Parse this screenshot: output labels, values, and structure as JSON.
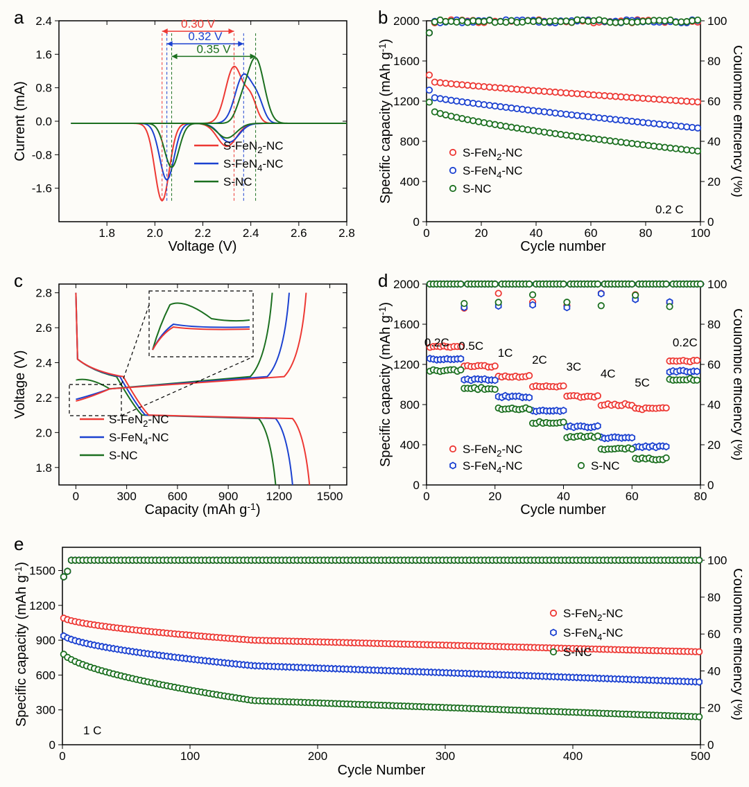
{
  "colors": {
    "red": "#ed3833",
    "blue": "#1b41d0",
    "green": "#1b6f1f",
    "black": "#000000",
    "bg": "#fdfcf8",
    "box": "#000000"
  },
  "panels": {
    "a": {
      "label": "a",
      "xlabel": "Voltage (V)",
      "ylabel": "Current (mA)",
      "xlim": [
        1.6,
        2.8
      ],
      "ylim": [
        -2.4,
        2.4
      ],
      "xticks": [
        "1.8",
        "2.0",
        "2.2",
        "2.4",
        "2.6",
        "2.8"
      ],
      "yticks": [
        "-1.6",
        "-0.8",
        "0.0",
        "0.8",
        "1.6",
        "2.4"
      ],
      "peak_labels": [
        {
          "text": "0.30 V",
          "color": "red"
        },
        {
          "text": "0.32 V",
          "color": "blue"
        },
        {
          "text": "0.35 V",
          "color": "green"
        }
      ],
      "legend": [
        {
          "label": "S-FeN",
          "sub": "2",
          "suffix": "-NC",
          "color": "red"
        },
        {
          "label": "S-FeN",
          "sub": "4",
          "suffix": "-NC",
          "color": "blue"
        },
        {
          "label": "S-NC",
          "sub": "",
          "suffix": "",
          "color": "green"
        }
      ]
    },
    "b": {
      "label": "b",
      "xlabel": "Cycle number",
      "ylabel": "Specific capacity (mAh g",
      "ylabel2": "Coulombic efficiency (%)",
      "xlim": [
        0,
        100
      ],
      "ylim1": [
        0,
        2000
      ],
      "ylim2": [
        0,
        100
      ],
      "xticks": [
        "0",
        "20",
        "40",
        "60",
        "80",
        "100"
      ],
      "yticks1": [
        "0",
        "400",
        "800",
        "1200",
        "1600",
        "2000"
      ],
      "yticks2": [
        "0",
        "20",
        "40",
        "60",
        "80",
        "100"
      ],
      "rate_label": "0.2 C",
      "legend": [
        {
          "label": "S-FeN",
          "sub": "2",
          "suffix": "-NC",
          "color": "red"
        },
        {
          "label": "S-FeN",
          "sub": "4",
          "suffix": "-NC",
          "color": "blue"
        },
        {
          "label": "S-NC",
          "sub": "",
          "suffix": "",
          "color": "green"
        }
      ],
      "series_capacity": {
        "red": {
          "start": 1400,
          "end": 1190
        },
        "blue": {
          "start": 1250,
          "end": 930
        },
        "green": {
          "start": 1130,
          "end": 700
        }
      },
      "series_eff": {
        "level": 100
      }
    },
    "c": {
      "label": "c",
      "xlabel": "Capacity (mAh g",
      "ylabel": "Voltage (V)",
      "xlim": [
        -100,
        1600
      ],
      "ylim": [
        1.7,
        2.85
      ],
      "xticks": [
        "0",
        "300",
        "600",
        "900",
        "1200",
        "1500"
      ],
      "yticks": [
        "1.8",
        "2.0",
        "2.2",
        "2.4",
        "2.6",
        "2.8"
      ],
      "legend": [
        {
          "label": "S-FeN",
          "sub": "2",
          "suffix": "-NC",
          "color": "red"
        },
        {
          "label": "S-FeN",
          "sub": "4",
          "suffix": "-NC",
          "color": "blue"
        },
        {
          "label": "S-NC",
          "sub": "",
          "suffix": "",
          "color": "green"
        }
      ]
    },
    "d": {
      "label": "d",
      "xlabel": "Cycle number",
      "ylabel": "Specific capacity (mAh g",
      "ylabel2": "Coulombic efficiency (%)",
      "xlim": [
        0,
        80
      ],
      "ylim1": [
        0,
        2000
      ],
      "ylim2": [
        0,
        100
      ],
      "xticks": [
        "0",
        "20",
        "40",
        "60",
        "80"
      ],
      "yticks1": [
        "0",
        "400",
        "800",
        "1200",
        "1600",
        "2000"
      ],
      "yticks2": [
        "0",
        "20",
        "40",
        "60",
        "80",
        "100"
      ],
      "rate_steps": [
        "0.2C",
        "0.5C",
        "1C",
        "2C",
        "3C",
        "4C",
        "5C",
        "0.2C"
      ],
      "step_values": {
        "red": [
          1380,
          1180,
          1080,
          980,
          880,
          800,
          760,
          1230
        ],
        "blue": [
          1250,
          1050,
          880,
          740,
          580,
          470,
          380,
          1130
        ],
        "green": [
          1140,
          960,
          760,
          620,
          480,
          360,
          260,
          1050
        ]
      },
      "legend": [
        {
          "label": "S-FeN",
          "sub": "2",
          "suffix": "-NC",
          "color": "red"
        },
        {
          "label": "S-FeN",
          "sub": "4",
          "suffix": "-NC",
          "color": "blue"
        },
        {
          "label": "S-NC",
          "sub": "",
          "suffix": "",
          "color": "green"
        }
      ]
    },
    "e": {
      "label": "e",
      "xlabel": "Cycle Number",
      "ylabel": "Specific capacity (mAh g",
      "ylabel2": "Coulombic efficiency (%)",
      "xlim": [
        0,
        500
      ],
      "ylim1": [
        0,
        1700
      ],
      "ylim2": [
        0,
        107
      ],
      "xticks": [
        "0",
        "100",
        "200",
        "300",
        "400",
        "500"
      ],
      "yticks1": [
        "0",
        "300",
        "600",
        "900",
        "1200",
        "1500"
      ],
      "yticks2": [
        "0",
        "20",
        "40",
        "60",
        "80",
        "100"
      ],
      "rate_label": "1 C",
      "series_capacity": {
        "red": {
          "start": 1100,
          "mid": 900,
          "end": 800
        },
        "blue": {
          "start": 950,
          "mid": 680,
          "end": 540
        },
        "green": {
          "start": 800,
          "mid": 380,
          "end": 240
        }
      },
      "legend": [
        {
          "label": "S-FeN",
          "sub": "2",
          "suffix": "-NC",
          "color": "red"
        },
        {
          "label": "S-FeN",
          "sub": "4",
          "suffix": "-NC",
          "color": "blue"
        },
        {
          "label": "S-NC",
          "sub": "",
          "suffix": "",
          "color": "green"
        }
      ]
    }
  }
}
